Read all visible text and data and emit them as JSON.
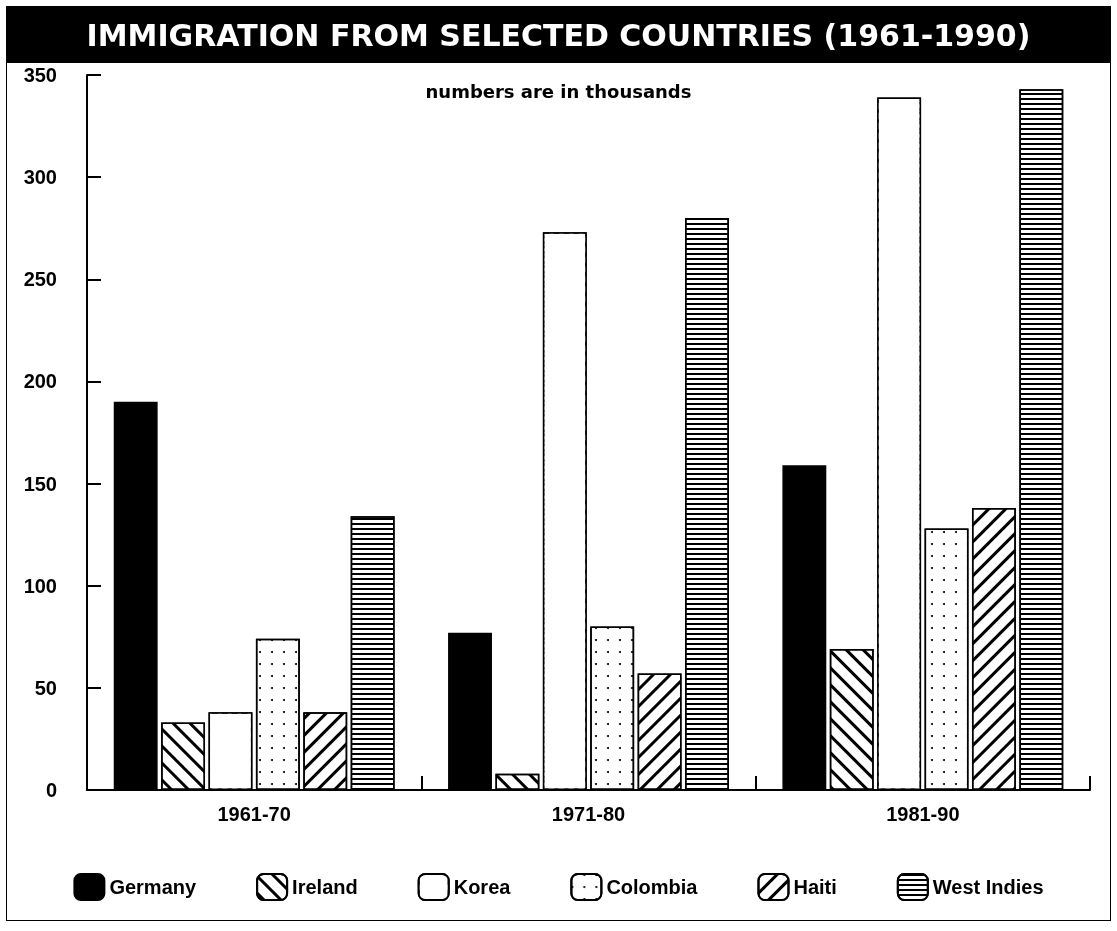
{
  "chart_data": {
    "type": "bar",
    "title": "IMMIGRATION FROM SELECTED COUNTRIES (1961-1990)",
    "subtitle": "numbers are in thousands",
    "categories": [
      "1961-70",
      "1971-80",
      "1981-90"
    ],
    "series": [
      {
        "name": "Germany",
        "color": "#000000",
        "values": [
          190,
          77,
          159
        ]
      },
      {
        "name": "Ireland",
        "color": "#ffffff",
        "values": [
          33,
          8,
          69
        ]
      },
      {
        "name": "Korea",
        "color": "#ffffff",
        "values": [
          38,
          273,
          339
        ]
      },
      {
        "name": "Colombia",
        "color": "#ffffff",
        "values": [
          74,
          80,
          128
        ]
      },
      {
        "name": "Haiti",
        "color": "#ffffff",
        "values": [
          38,
          57,
          138
        ]
      },
      {
        "name": "West Indies",
        "color": "#ffffff",
        "values": [
          134,
          280,
          343
        ]
      }
    ],
    "ylim": [
      0,
      350
    ],
    "yticks": [
      0,
      50,
      100,
      150,
      200,
      250,
      300,
      350
    ],
    "grid": false,
    "legend": "bottom"
  }
}
